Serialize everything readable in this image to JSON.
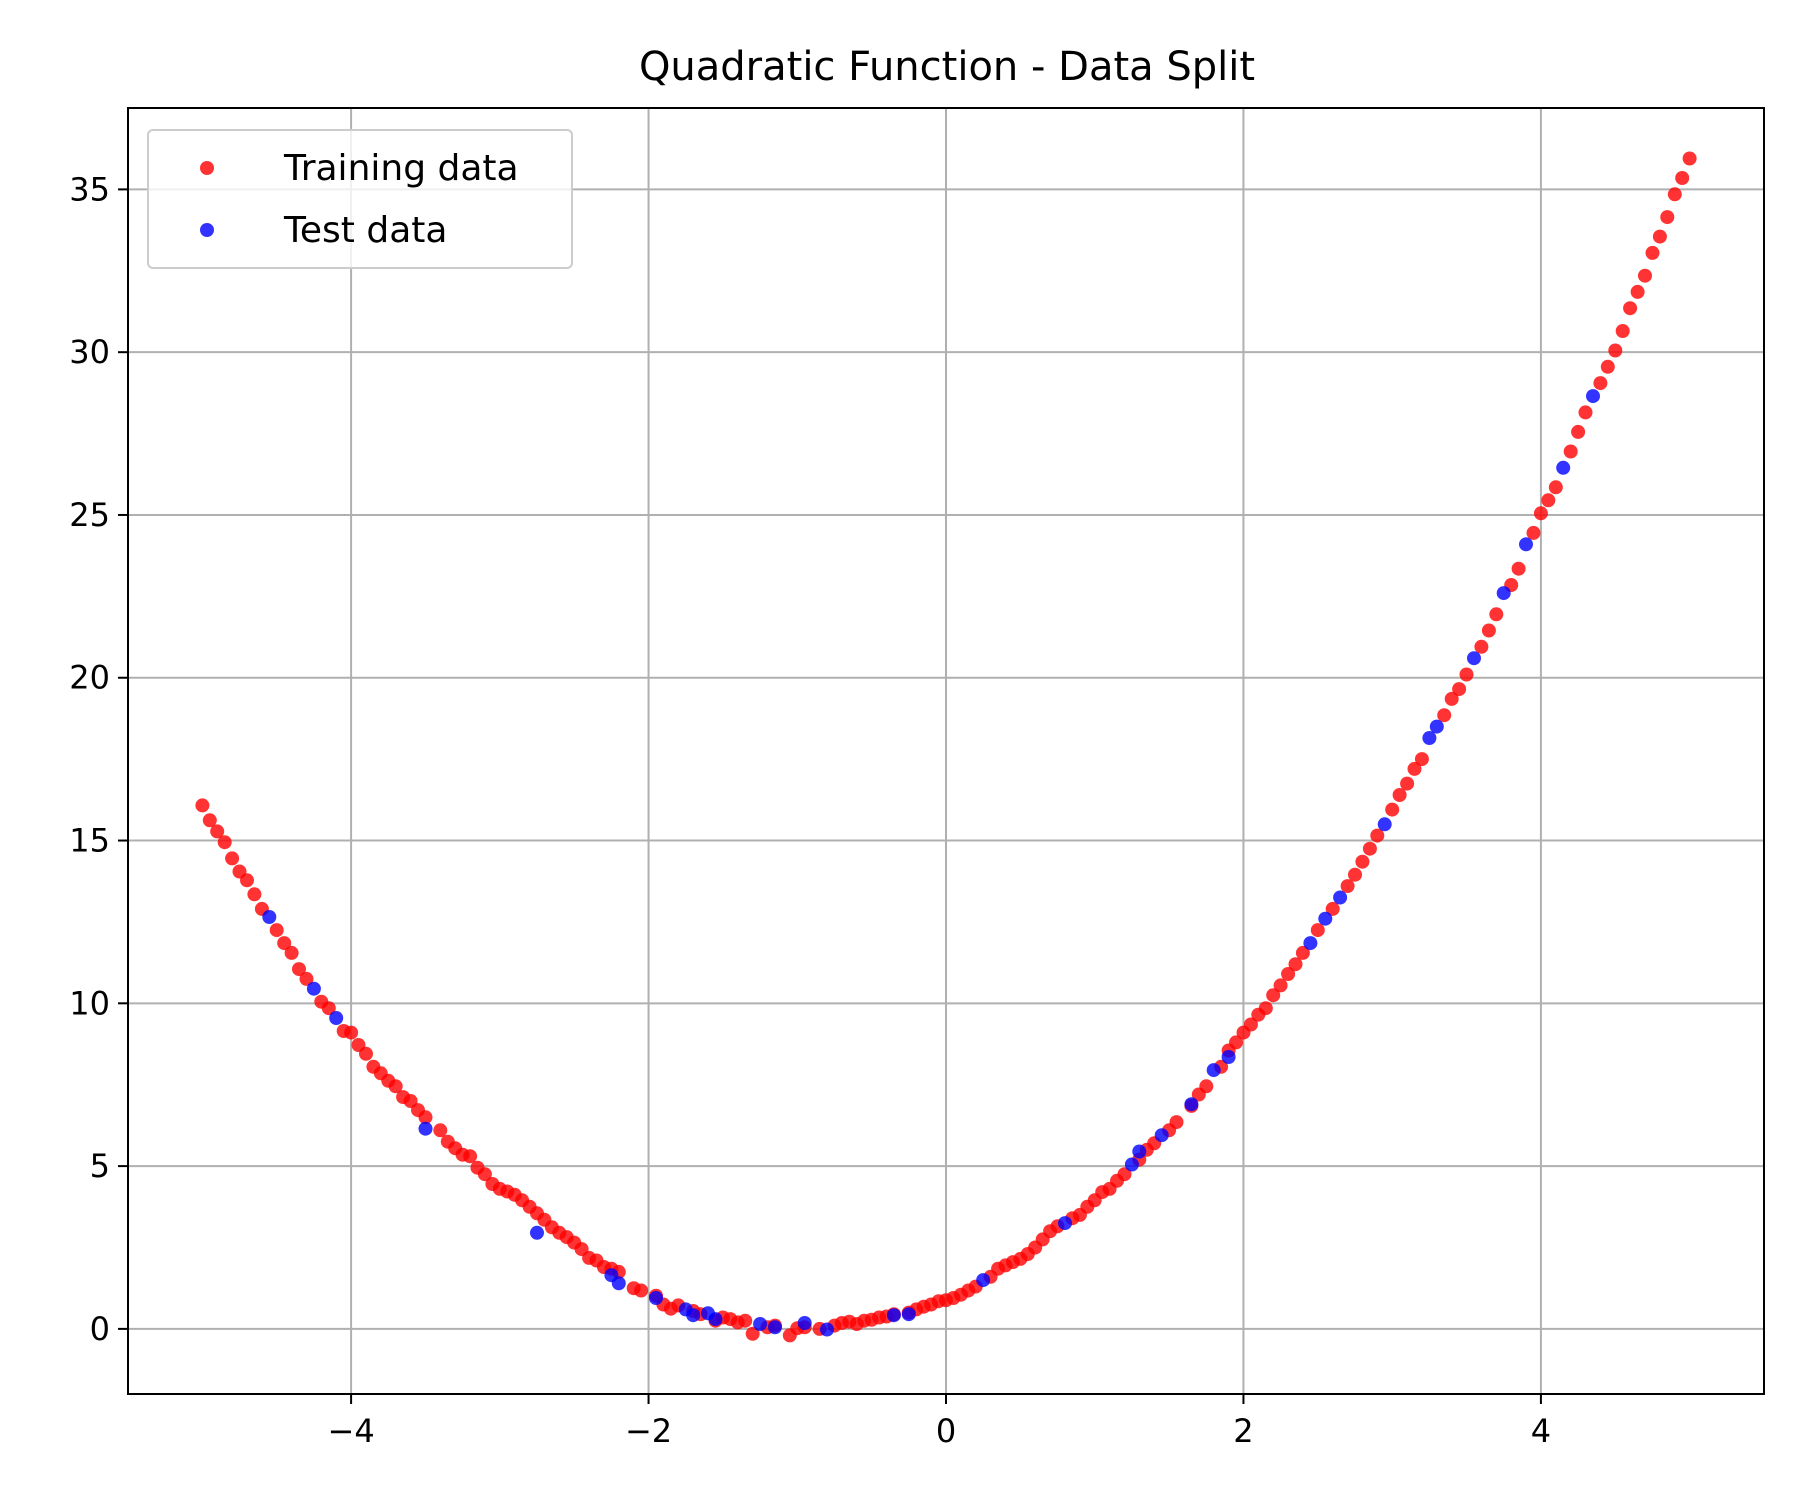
{
  "chart_data": {
    "type": "scatter",
    "title": "Quadratic Function - Data Split",
    "xlabel": "",
    "ylabel": "",
    "xlim": [
      -5.5,
      5.5
    ],
    "ylim": [
      -2,
      37.5
    ],
    "xticks": [
      -4,
      -2,
      0,
      2,
      4
    ],
    "xtick_labels": [
      "−4",
      "−2",
      "0",
      "2",
      "4"
    ],
    "yticks": [
      0,
      5,
      10,
      15,
      20,
      25,
      30,
      35
    ],
    "ytick_labels": [
      "0",
      "5",
      "10",
      "15",
      "20",
      "25",
      "30",
      "35"
    ],
    "grid": true,
    "legend_position": "top-left",
    "series": [
      {
        "name": "Training data",
        "color": "#ff0000",
        "points": [
          [
            -5.0,
            16.08
          ],
          [
            -4.95,
            15.62
          ],
          [
            -4.9,
            15.28
          ],
          [
            -4.85,
            14.95
          ],
          [
            -4.8,
            14.45
          ],
          [
            -4.75,
            14.05
          ],
          [
            -4.7,
            13.78
          ],
          [
            -4.65,
            13.35
          ],
          [
            -4.6,
            12.9
          ],
          [
            -4.5,
            12.25
          ],
          [
            -4.45,
            11.85
          ],
          [
            -4.4,
            11.55
          ],
          [
            -4.35,
            11.05
          ],
          [
            -4.3,
            10.75
          ],
          [
            -4.2,
            10.05
          ],
          [
            -4.15,
            9.85
          ],
          [
            -4.05,
            9.15
          ],
          [
            -4.0,
            9.1
          ],
          [
            -3.95,
            8.72
          ],
          [
            -3.9,
            8.45
          ],
          [
            -3.85,
            8.05
          ],
          [
            -3.8,
            7.85
          ],
          [
            -3.75,
            7.62
          ],
          [
            -3.7,
            7.45
          ],
          [
            -3.65,
            7.12
          ],
          [
            -3.6,
            7.0
          ],
          [
            -3.55,
            6.72
          ],
          [
            -3.5,
            6.5
          ],
          [
            -3.4,
            6.1
          ],
          [
            -3.35,
            5.75
          ],
          [
            -3.3,
            5.55
          ],
          [
            -3.25,
            5.35
          ],
          [
            -3.2,
            5.3
          ],
          [
            -3.15,
            4.95
          ],
          [
            -3.1,
            4.75
          ],
          [
            -3.05,
            4.45
          ],
          [
            -3.0,
            4.3
          ],
          [
            -2.95,
            4.22
          ],
          [
            -2.9,
            4.12
          ],
          [
            -2.85,
            3.95
          ],
          [
            -2.8,
            3.75
          ],
          [
            -2.75,
            3.55
          ],
          [
            -2.7,
            3.35
          ],
          [
            -2.65,
            3.12
          ],
          [
            -2.6,
            2.95
          ],
          [
            -2.55,
            2.82
          ],
          [
            -2.5,
            2.65
          ],
          [
            -2.45,
            2.45
          ],
          [
            -2.4,
            2.18
          ],
          [
            -2.35,
            2.1
          ],
          [
            -2.3,
            1.9
          ],
          [
            -2.25,
            1.85
          ],
          [
            -2.2,
            1.75
          ],
          [
            -2.1,
            1.25
          ],
          [
            -2.05,
            1.18
          ],
          [
            -1.95,
            1.02
          ],
          [
            -1.9,
            0.75
          ],
          [
            -1.85,
            0.62
          ],
          [
            -1.8,
            0.72
          ],
          [
            -1.7,
            0.55
          ],
          [
            -1.65,
            0.45
          ],
          [
            -1.55,
            0.25
          ],
          [
            -1.5,
            0.35
          ],
          [
            -1.45,
            0.3
          ],
          [
            -1.4,
            0.2
          ],
          [
            -1.35,
            0.25
          ],
          [
            -1.3,
            -0.15
          ],
          [
            -1.2,
            0.05
          ],
          [
            -1.15,
            0.1
          ],
          [
            -1.05,
            -0.2
          ],
          [
            -1.0,
            0.02
          ],
          [
            -0.95,
            0.05
          ],
          [
            -0.85,
            0.0
          ],
          [
            -0.75,
            0.1
          ],
          [
            -0.7,
            0.18
          ],
          [
            -0.65,
            0.22
          ],
          [
            -0.6,
            0.15
          ],
          [
            -0.55,
            0.25
          ],
          [
            -0.5,
            0.28
          ],
          [
            -0.45,
            0.35
          ],
          [
            -0.4,
            0.38
          ],
          [
            -0.35,
            0.45
          ],
          [
            -0.25,
            0.5
          ],
          [
            -0.2,
            0.6
          ],
          [
            -0.15,
            0.68
          ],
          [
            -0.1,
            0.75
          ],
          [
            -0.05,
            0.85
          ],
          [
            0.0,
            0.88
          ],
          [
            0.05,
            0.95
          ],
          [
            0.1,
            1.05
          ],
          [
            0.15,
            1.18
          ],
          [
            0.2,
            1.3
          ],
          [
            0.3,
            1.6
          ],
          [
            0.35,
            1.85
          ],
          [
            0.4,
            1.95
          ],
          [
            0.45,
            2.05
          ],
          [
            0.5,
            2.15
          ],
          [
            0.55,
            2.3
          ],
          [
            0.6,
            2.5
          ],
          [
            0.65,
            2.75
          ],
          [
            0.7,
            3.0
          ],
          [
            0.75,
            3.15
          ],
          [
            0.85,
            3.4
          ],
          [
            0.9,
            3.5
          ],
          [
            0.95,
            3.75
          ],
          [
            1.0,
            3.95
          ],
          [
            1.05,
            4.2
          ],
          [
            1.1,
            4.3
          ],
          [
            1.15,
            4.55
          ],
          [
            1.2,
            4.75
          ],
          [
            1.3,
            5.2
          ],
          [
            1.35,
            5.5
          ],
          [
            1.4,
            5.7
          ],
          [
            1.5,
            6.1
          ],
          [
            1.55,
            6.35
          ],
          [
            1.65,
            6.85
          ],
          [
            1.7,
            7.2
          ],
          [
            1.75,
            7.45
          ],
          [
            1.85,
            8.05
          ],
          [
            1.9,
            8.55
          ],
          [
            1.95,
            8.8
          ],
          [
            2.0,
            9.1
          ],
          [
            2.05,
            9.35
          ],
          [
            2.1,
            9.65
          ],
          [
            2.15,
            9.85
          ],
          [
            2.2,
            10.25
          ],
          [
            2.25,
            10.55
          ],
          [
            2.3,
            10.9
          ],
          [
            2.35,
            11.2
          ],
          [
            2.4,
            11.55
          ],
          [
            2.5,
            12.25
          ],
          [
            2.6,
            12.9
          ],
          [
            2.7,
            13.6
          ],
          [
            2.75,
            13.95
          ],
          [
            2.8,
            14.35
          ],
          [
            2.85,
            14.75
          ],
          [
            2.9,
            15.15
          ],
          [
            3.0,
            15.95
          ],
          [
            3.05,
            16.4
          ],
          [
            3.1,
            16.75
          ],
          [
            3.15,
            17.2
          ],
          [
            3.2,
            17.5
          ],
          [
            3.35,
            18.85
          ],
          [
            3.4,
            19.35
          ],
          [
            3.45,
            19.65
          ],
          [
            3.5,
            20.1
          ],
          [
            3.6,
            20.95
          ],
          [
            3.65,
            21.45
          ],
          [
            3.7,
            21.95
          ],
          [
            3.8,
            22.85
          ],
          [
            3.85,
            23.35
          ],
          [
            3.95,
            24.45
          ],
          [
            4.0,
            25.05
          ],
          [
            4.05,
            25.45
          ],
          [
            4.1,
            25.85
          ],
          [
            4.2,
            26.95
          ],
          [
            4.25,
            27.55
          ],
          [
            4.3,
            28.15
          ],
          [
            4.4,
            29.05
          ],
          [
            4.45,
            29.55
          ],
          [
            4.5,
            30.05
          ],
          [
            4.55,
            30.65
          ],
          [
            4.6,
            31.35
          ],
          [
            4.65,
            31.85
          ],
          [
            4.7,
            32.35
          ],
          [
            4.75,
            33.05
          ],
          [
            4.8,
            33.55
          ],
          [
            4.85,
            34.15
          ],
          [
            4.9,
            34.85
          ],
          [
            4.95,
            35.35
          ],
          [
            5.0,
            35.95
          ]
        ]
      },
      {
        "name": "Test data",
        "color": "#0000ff",
        "points": [
          [
            -4.55,
            12.65
          ],
          [
            -4.25,
            10.45
          ],
          [
            -4.1,
            9.55
          ],
          [
            -3.5,
            6.15
          ],
          [
            -2.75,
            2.95
          ],
          [
            -2.25,
            1.65
          ],
          [
            -2.2,
            1.4
          ],
          [
            -1.95,
            0.95
          ],
          [
            -1.75,
            0.6
          ],
          [
            -1.7,
            0.42
          ],
          [
            -1.6,
            0.48
          ],
          [
            -1.55,
            0.3
          ],
          [
            -1.25,
            0.15
          ],
          [
            -1.15,
            0.05
          ],
          [
            -0.95,
            0.18
          ],
          [
            -0.8,
            -0.02
          ],
          [
            -0.35,
            0.42
          ],
          [
            -0.25,
            0.45
          ],
          [
            0.25,
            1.5
          ],
          [
            0.8,
            3.25
          ],
          [
            1.25,
            5.05
          ],
          [
            1.3,
            5.45
          ],
          [
            1.45,
            5.95
          ],
          [
            1.65,
            6.9
          ],
          [
            1.8,
            7.95
          ],
          [
            1.9,
            8.35
          ],
          [
            2.45,
            11.85
          ],
          [
            2.55,
            12.6
          ],
          [
            2.65,
            13.25
          ],
          [
            2.95,
            15.5
          ],
          [
            3.25,
            18.15
          ],
          [
            3.3,
            18.5
          ],
          [
            3.55,
            20.6
          ],
          [
            3.75,
            22.6
          ],
          [
            3.9,
            24.1
          ],
          [
            4.15,
            26.45
          ],
          [
            4.35,
            28.65
          ]
        ]
      }
    ]
  }
}
